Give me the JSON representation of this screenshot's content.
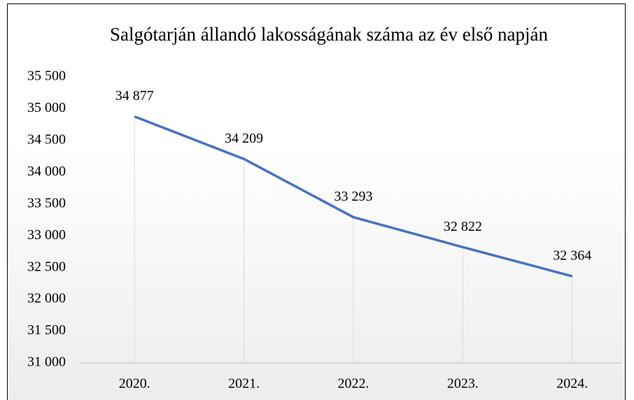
{
  "chart_data": {
    "type": "line",
    "title": "Salgótarján állandó lakosságának száma az év első napján",
    "categories": [
      "2020.",
      "2021.",
      "2022.",
      "2023.",
      "2024."
    ],
    "values": [
      34877,
      34209,
      33293,
      32822,
      32364
    ],
    "value_labels": [
      "34 877",
      "34 209",
      "33 293",
      "32 822",
      "32 364"
    ],
    "color": "#4472c4",
    "ylim": [
      31000,
      35500
    ],
    "yticks": [
      {
        "value": 31000,
        "label": "31 000"
      },
      {
        "value": 31500,
        "label": "31 500"
      },
      {
        "value": 32000,
        "label": "32 000"
      },
      {
        "value": 32500,
        "label": "32 500"
      },
      {
        "value": 33000,
        "label": "33 000"
      },
      {
        "value": 33500,
        "label": "33 500"
      },
      {
        "value": 34000,
        "label": "34 000"
      },
      {
        "value": 34500,
        "label": "34 500"
      },
      {
        "value": 35000,
        "label": "35 000"
      },
      {
        "value": 35500,
        "label": "35 500"
      }
    ],
    "grid": false
  }
}
